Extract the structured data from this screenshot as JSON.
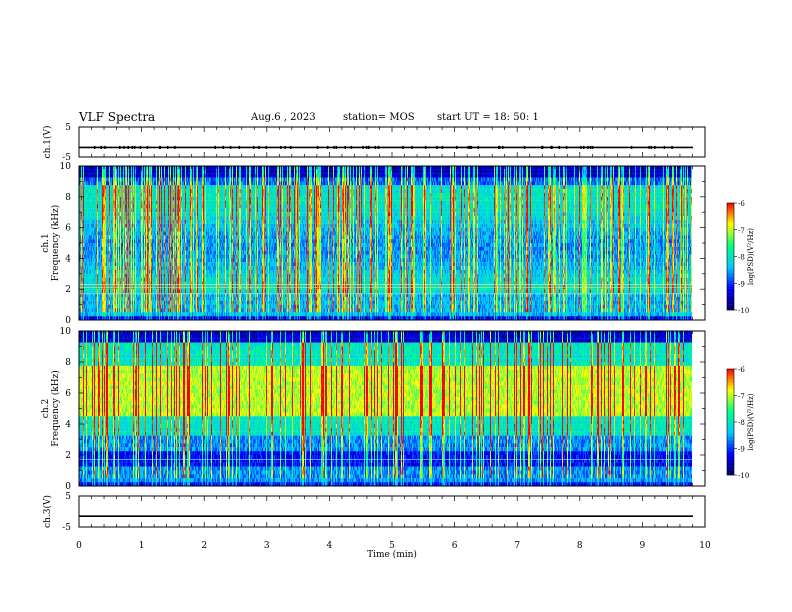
{
  "header": {
    "title": "VLF Spectra",
    "date": "Aug.6 , 2023",
    "station": "station= MOS",
    "start_ut": "start UT = 18: 50: 1"
  },
  "chart_data": [
    {
      "type": "line",
      "panel": "ch1-waveform",
      "ylabel": "ch.1(V)",
      "ylim": [
        -5,
        5
      ],
      "yticks": [
        "5",
        "-5"
      ],
      "x": [
        0,
        10
      ],
      "values": [
        -1.8,
        -1.8
      ],
      "xlim": [
        0,
        10
      ]
    },
    {
      "type": "heatmap",
      "panel": "ch1-spectrogram",
      "ylabel": "ch.1 Frequency (kHz)",
      "ylim": [
        0,
        10
      ],
      "yticks": [
        "0",
        "2",
        "4",
        "6",
        "8",
        "10"
      ],
      "xlim": [
        0,
        10
      ],
      "data_extent_min": 9.8,
      "horizontal_lines_khz": [
        1.7,
        2.1,
        2.3
      ],
      "high_power_band_khz": [
        0.5,
        9.0
      ],
      "colorbar": {
        "label": "log(PSD)(V²/Hz)",
        "min": -10,
        "max": -6,
        "ticks": [
          "-6",
          "-7",
          "-8",
          "-9",
          "-10"
        ]
      }
    },
    {
      "type": "heatmap",
      "panel": "ch2-spectrogram",
      "ylabel": "ch.2 Frequency (kHz)",
      "ylim": [
        0,
        10
      ],
      "yticks": [
        "0",
        "2",
        "4",
        "6",
        "8",
        "10"
      ],
      "xlim": [
        0,
        10
      ],
      "data_extent_min": 9.8,
      "horizontal_lines_khz": [
        1.7
      ],
      "high_power_band_khz": [
        4.5,
        8.0
      ],
      "colorbar": {
        "label": "log(PSD)(V²/Hz)",
        "min": -10,
        "max": -6,
        "ticks": [
          "-6",
          "-7",
          "-8",
          "-9",
          "-10"
        ]
      }
    },
    {
      "type": "line",
      "panel": "ch3-waveform",
      "ylabel": "ch.3(V)",
      "ylim": [
        -5,
        5
      ],
      "yticks": [
        "5",
        "-5"
      ],
      "x": [
        0,
        10
      ],
      "values": [
        -1.5,
        -1.5
      ],
      "xlim": [
        0,
        10
      ],
      "xlabel": "Time (min)",
      "xticks": [
        "0",
        "1",
        "2",
        "3",
        "4",
        "5",
        "6",
        "7",
        "8",
        "9",
        "10"
      ]
    }
  ],
  "colors": {
    "colormap": [
      "#000060",
      "#0000ff",
      "#00c8ff",
      "#00ff80",
      "#ffff00",
      "#ff0000",
      "#ffffff"
    ],
    "axis": "#000000"
  }
}
